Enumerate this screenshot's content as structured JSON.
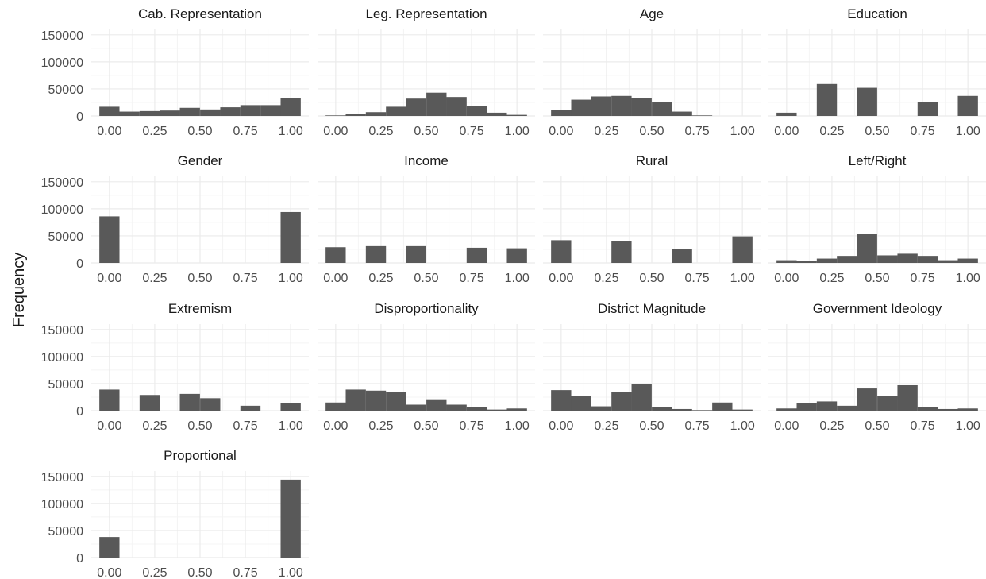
{
  "y_axis_label": "Frequency",
  "colors": {
    "bar": "#595959",
    "grid_major": "#ebebeb",
    "grid_minor": "#f4f4f4",
    "text": "#4d4d4d",
    "title": "#1a1a1a"
  },
  "chart_data": {
    "type": "bar",
    "subtype": "histogram",
    "layout": {
      "rows": 4,
      "cols": 4
    },
    "ylabel": "Frequency",
    "ylim": [
      0,
      160000
    ],
    "yticks": [
      0,
      50000,
      100000,
      150000
    ],
    "xlim": [
      -0.1,
      1.1
    ],
    "xticks": [
      0,
      0.25,
      0.5,
      0.75,
      1
    ],
    "xtick_labels": [
      "0.00",
      "0.25",
      "0.50",
      "0.75",
      "1.00"
    ],
    "grid": true,
    "bin_width": 0.1111,
    "panels": [
      {
        "title": "Cab. Representation",
        "bin_centers": [
          0,
          0.111,
          0.222,
          0.333,
          0.444,
          0.556,
          0.667,
          0.778,
          0.889,
          1
        ],
        "values": [
          17000,
          8000,
          9000,
          10000,
          15000,
          12000,
          16000,
          20000,
          20000,
          33000
        ]
      },
      {
        "title": "Leg. Representation",
        "bin_centers": [
          0,
          0.111,
          0.222,
          0.333,
          0.444,
          0.556,
          0.667,
          0.778,
          0.889,
          1
        ],
        "values": [
          1000,
          3000,
          7000,
          17000,
          32000,
          43000,
          35000,
          18000,
          6000,
          2000
        ]
      },
      {
        "title": "Age",
        "bin_centers": [
          0,
          0.111,
          0.222,
          0.333,
          0.444,
          0.556,
          0.667,
          0.778,
          0.889,
          1
        ],
        "values": [
          11000,
          30000,
          36000,
          37000,
          33000,
          25000,
          8000,
          1000,
          0,
          0
        ]
      },
      {
        "title": "Education",
        "bin_centers": [
          0,
          0.222,
          0.444,
          0.778,
          1
        ],
        "values": [
          6000,
          59000,
          52000,
          25000,
          37000
        ]
      },
      {
        "title": "Gender",
        "bin_centers": [
          0,
          1
        ],
        "values": [
          86000,
          94000
        ]
      },
      {
        "title": "Income",
        "bin_centers": [
          0,
          0.222,
          0.444,
          0.778,
          1
        ],
        "values": [
          29000,
          31000,
          31000,
          28000,
          27000
        ]
      },
      {
        "title": "Rural",
        "bin_centers": [
          0,
          0.333,
          0.667,
          1
        ],
        "values": [
          42000,
          41000,
          25000,
          49000
        ]
      },
      {
        "title": "Left/Right",
        "bin_centers": [
          0,
          0.111,
          0.222,
          0.333,
          0.444,
          0.556,
          0.667,
          0.778,
          0.889,
          1
        ],
        "values": [
          5000,
          4000,
          8000,
          13000,
          54000,
          14000,
          17000,
          13000,
          5000,
          8000
        ]
      },
      {
        "title": "Extremism",
        "bin_centers": [
          0,
          0.222,
          0.444,
          0.556,
          0.778,
          1
        ],
        "values": [
          39000,
          29000,
          31000,
          23000,
          9000,
          14000
        ]
      },
      {
        "title": "Disproportionality",
        "bin_centers": [
          0,
          0.111,
          0.222,
          0.333,
          0.444,
          0.556,
          0.667,
          0.778,
          0.889,
          1
        ],
        "values": [
          15000,
          39000,
          37000,
          34000,
          11000,
          21000,
          11000,
          7000,
          2000,
          4000
        ]
      },
      {
        "title": "District Magnitude",
        "bin_centers": [
          0,
          0.111,
          0.222,
          0.333,
          0.444,
          0.556,
          0.667,
          0.778,
          0.889,
          1
        ],
        "values": [
          38000,
          27000,
          8000,
          34000,
          49000,
          7000,
          3000,
          1000,
          15000,
          2000
        ]
      },
      {
        "title": "Government Ideology",
        "bin_centers": [
          0,
          0.111,
          0.222,
          0.333,
          0.444,
          0.556,
          0.667,
          0.778,
          0.889,
          1
        ],
        "values": [
          4000,
          14000,
          17000,
          9000,
          41000,
          27000,
          47000,
          6000,
          3000,
          4000
        ]
      },
      {
        "title": "Proportional",
        "bin_centers": [
          0,
          1
        ],
        "values": [
          38000,
          144000
        ]
      }
    ]
  }
}
